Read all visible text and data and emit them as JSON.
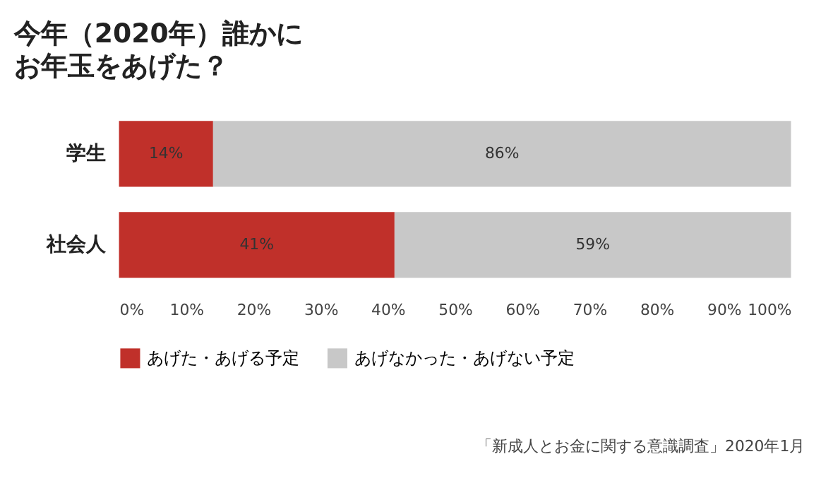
{
  "chart_data": {
    "type": "bar",
    "orientation": "horizontal",
    "stacked": true,
    "title": "今年（2020年）誰かに",
    "subtitle": "お年玉をあげた？",
    "categories": [
      "学生",
      "社会人"
    ],
    "series": [
      {
        "name": "あげた・あげる予定",
        "color": "#c0302a",
        "values": [
          14,
          41
        ],
        "value_labels": [
          "14%",
          "41%"
        ]
      },
      {
        "name": "あげなかった・あげない予定",
        "color": "#c8c8c8",
        "values": [
          86,
          59
        ],
        "value_labels": [
          "86%",
          "59%"
        ]
      }
    ],
    "xlim": [
      0,
      100
    ],
    "xticks": [
      {
        "value": 0,
        "label": "0%"
      },
      {
        "value": 10,
        "label": "10%"
      },
      {
        "value": 20,
        "label": "20%"
      },
      {
        "value": 30,
        "label": "30%"
      },
      {
        "value": 40,
        "label": "40%"
      },
      {
        "value": 50,
        "label": "50%"
      },
      {
        "value": 60,
        "label": "60%"
      },
      {
        "value": 70,
        "label": "70%"
      },
      {
        "value": 80,
        "label": "80%"
      },
      {
        "value": 90,
        "label": "90%"
      },
      {
        "value": 100,
        "label": "100%"
      }
    ],
    "grid": false,
    "legend": "bottom left",
    "annotations": [
      "「新成人とお金に関する意識調査」2020年1月"
    ]
  }
}
